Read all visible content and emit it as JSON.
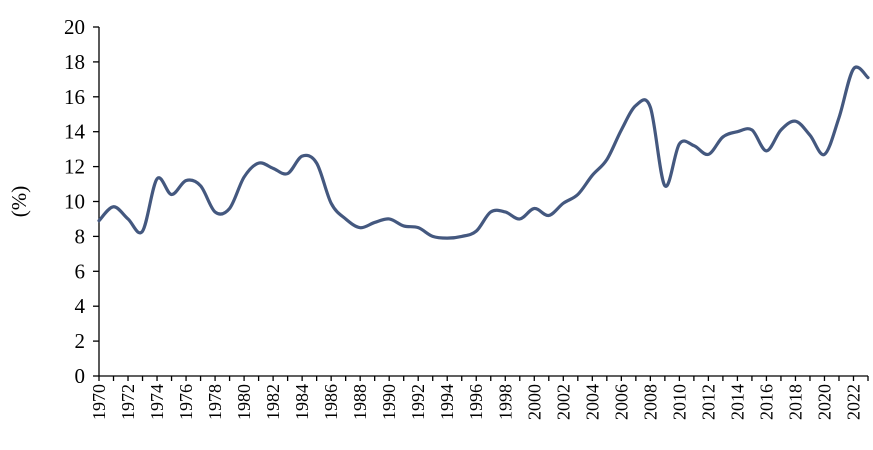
{
  "chart_data": {
    "type": "line",
    "title": "",
    "xlabel": "",
    "ylabel": "(%)",
    "ylim": [
      0,
      20
    ],
    "yticks": [
      0,
      2,
      4,
      6,
      8,
      10,
      12,
      14,
      16,
      18,
      20
    ],
    "xlim": [
      1970,
      2023
    ],
    "xticks": [
      1970,
      1972,
      1974,
      1976,
      1978,
      1980,
      1982,
      1984,
      1986,
      1988,
      1990,
      1992,
      1994,
      1996,
      1998,
      2000,
      2002,
      2004,
      2006,
      2008,
      2010,
      2012,
      2014,
      2016,
      2018,
      2020,
      2022
    ],
    "grid": false,
    "legend": "none",
    "line_color": "#44587f",
    "series": [
      {
        "x": [
          1970,
          1971,
          1972,
          1973,
          1974,
          1975,
          1976,
          1977,
          1978,
          1979,
          1980,
          1981,
          1982,
          1983,
          1984,
          1985,
          1986,
          1987,
          1988,
          1989,
          1990,
          1991,
          1992,
          1993,
          1994,
          1995,
          1996,
          1997,
          1998,
          1999,
          2000,
          2001,
          2002,
          2003,
          2004,
          2005,
          2006,
          2007,
          2008,
          2009,
          2010,
          2011,
          2012,
          2013,
          2014,
          2015,
          2016,
          2017,
          2018,
          2019,
          2020,
          2021,
          2022,
          2023
        ],
        "values": [
          8.9,
          9.7,
          9.0,
          8.3,
          11.3,
          10.4,
          11.2,
          10.9,
          9.4,
          9.6,
          11.4,
          12.2,
          11.9,
          11.6,
          12.6,
          12.2,
          9.9,
          9.0,
          8.5,
          8.8,
          9.0,
          8.6,
          8.5,
          8.0,
          7.9,
          8.0,
          8.3,
          9.4,
          9.4,
          9.0,
          9.6,
          9.2,
          9.9,
          10.4,
          11.5,
          12.4,
          14.1,
          15.5,
          15.4,
          10.9,
          13.3,
          13.2,
          12.7,
          13.7,
          14.0,
          14.1,
          12.9,
          14.1,
          14.6,
          13.8,
          12.7,
          14.8,
          17.6,
          17.1
        ]
      }
    ]
  }
}
